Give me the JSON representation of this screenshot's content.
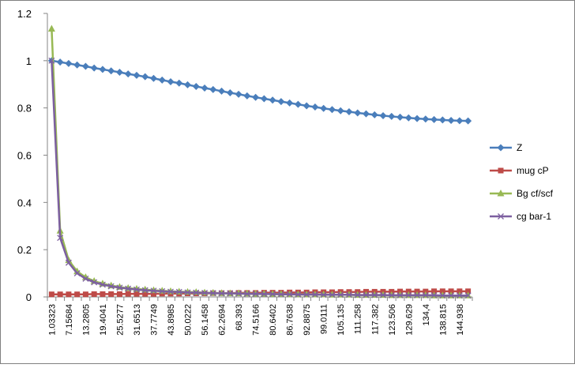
{
  "chart_data": {
    "type": "line",
    "title": "",
    "xlabel": "",
    "ylabel": "",
    "ylim": [
      0,
      1.2
    ],
    "yticks": [
      0,
      0.2,
      0.4,
      0.6,
      0.8,
      1,
      1.2
    ],
    "yticklabels": [
      "0",
      "0.2",
      "0.4",
      "0.6",
      "0.8",
      "1",
      "1.2"
    ],
    "grid": false,
    "legend_position": "right",
    "x_tick_labels": [
      "1.03323",
      "7.15684",
      "13.2805",
      "19.4041",
      "25.5277",
      "31.6513",
      "37.7749",
      "43.8985",
      "50.0222",
      "56.1458",
      "62.2694",
      "68.393",
      "74.5166",
      "80.6402",
      "86.7638",
      "92.8875",
      "99.0111",
      "105.135",
      "111.258",
      "117.382",
      "123.506",
      "129.629",
      "134,4",
      "138.815",
      "144.938"
    ],
    "point_count": 50,
    "series": [
      {
        "name": "Z",
        "color": "#4a7ebb",
        "marker": "diamond",
        "values": [
          1.0,
          0.994,
          0.988,
          0.982,
          0.976,
          0.969,
          0.963,
          0.957,
          0.951,
          0.944,
          0.938,
          0.932,
          0.925,
          0.918,
          0.911,
          0.905,
          0.898,
          0.891,
          0.884,
          0.878,
          0.871,
          0.864,
          0.858,
          0.851,
          0.845,
          0.839,
          0.833,
          0.827,
          0.821,
          0.815,
          0.809,
          0.804,
          0.798,
          0.793,
          0.788,
          0.784,
          0.779,
          0.775,
          0.771,
          0.767,
          0.764,
          0.761,
          0.758,
          0.755,
          0.753,
          0.751,
          0.749,
          0.747,
          0.746,
          0.745
        ]
      },
      {
        "name": "mug cP",
        "color": "#be4b48",
        "marker": "square",
        "values": [
          0.011,
          0.011,
          0.011,
          0.011,
          0.011,
          0.012,
          0.012,
          0.012,
          0.012,
          0.013,
          0.013,
          0.013,
          0.013,
          0.014,
          0.014,
          0.014,
          0.015,
          0.015,
          0.015,
          0.016,
          0.016,
          0.016,
          0.017,
          0.017,
          0.017,
          0.018,
          0.018,
          0.018,
          0.019,
          0.019,
          0.019,
          0.02,
          0.02,
          0.02,
          0.021,
          0.021,
          0.021,
          0.022,
          0.022,
          0.022,
          0.022,
          0.023,
          0.023,
          0.023,
          0.023,
          0.024,
          0.024,
          0.024,
          0.024,
          0.024
        ]
      },
      {
        "name": "Bg cf/scf",
        "color": "#98b954",
        "marker": "triangle",
        "values": [
          1.135,
          0.28,
          0.155,
          0.108,
          0.083,
          0.067,
          0.056,
          0.048,
          0.042,
          0.037,
          0.034,
          0.031,
          0.028,
          0.026,
          0.024,
          0.022,
          0.021,
          0.02,
          0.018,
          0.017,
          0.016,
          0.015,
          0.015,
          0.014,
          0.013,
          0.013,
          0.012,
          0.012,
          0.011,
          0.011,
          0.01,
          0.01,
          0.01,
          0.009,
          0.009,
          0.009,
          0.008,
          0.008,
          0.008,
          0.008,
          0.007,
          0.007,
          0.007,
          0.007,
          0.007,
          0.006,
          0.006,
          0.006,
          0.006,
          0.006
        ]
      },
      {
        "name": "cg bar-1",
        "color": "#7d60a0",
        "marker": "x",
        "values": [
          1.0,
          0.25,
          0.145,
          0.1,
          0.077,
          0.062,
          0.052,
          0.045,
          0.039,
          0.035,
          0.031,
          0.028,
          0.026,
          0.024,
          0.022,
          0.021,
          0.019,
          0.018,
          0.017,
          0.016,
          0.015,
          0.015,
          0.014,
          0.013,
          0.013,
          0.012,
          0.012,
          0.011,
          0.011,
          0.01,
          0.01,
          0.01,
          0.009,
          0.009,
          0.009,
          0.009,
          0.008,
          0.008,
          0.008,
          0.008,
          0.007,
          0.007,
          0.007,
          0.007,
          0.007,
          0.007,
          0.006,
          0.006,
          0.006,
          0.006
        ]
      }
    ]
  }
}
